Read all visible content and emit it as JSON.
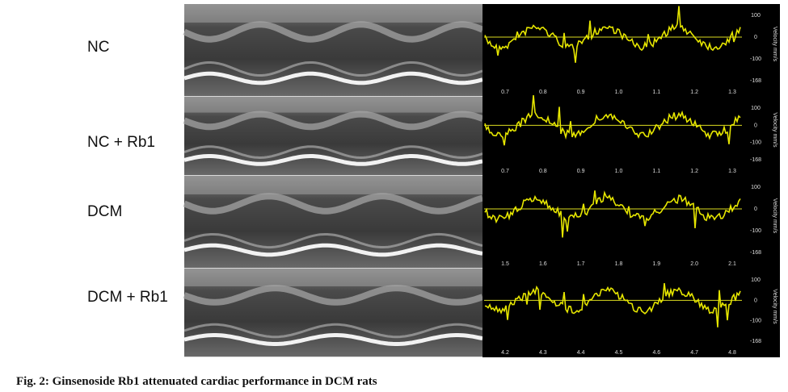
{
  "figure": {
    "panels": [
      {
        "label": "NC",
        "x_ticks": [
          "0.7",
          "0.8",
          "0.9",
          "1.0",
          "1.1",
          "1.2",
          "1.3"
        ],
        "y_ticks": [
          "100",
          "0",
          "-100",
          "-168"
        ],
        "y_axis_title": "Velocity mm/s"
      },
      {
        "label": "NC + Rb1",
        "x_ticks": [
          "0.7",
          "0.8",
          "0.9",
          "1.0",
          "1.1",
          "1.2",
          "1.3"
        ],
        "y_ticks": [
          "100",
          "0",
          "-100",
          "-168"
        ],
        "y_axis_title": "Velocity mm/s"
      },
      {
        "label": "DCM",
        "x_ticks": [
          "1.5",
          "1.6",
          "1.7",
          "1.8",
          "1.9",
          "2.0",
          "2.1"
        ],
        "y_ticks": [
          "100",
          "0",
          "-100",
          "-168"
        ],
        "y_axis_title": "Velocity mm/s"
      },
      {
        "label": "DCM + Rb1",
        "x_ticks": [
          "4.2",
          "4.3",
          "4.4",
          "4.5",
          "4.6",
          "4.7",
          "4.8"
        ],
        "y_ticks": [
          "100",
          "0",
          "-100",
          "-168"
        ],
        "y_axis_title": "Velocity mm/s"
      }
    ],
    "caption": "Fig. 2: Ginsenoside Rb1 attenuated cardiac performance in DCM rats"
  }
}
